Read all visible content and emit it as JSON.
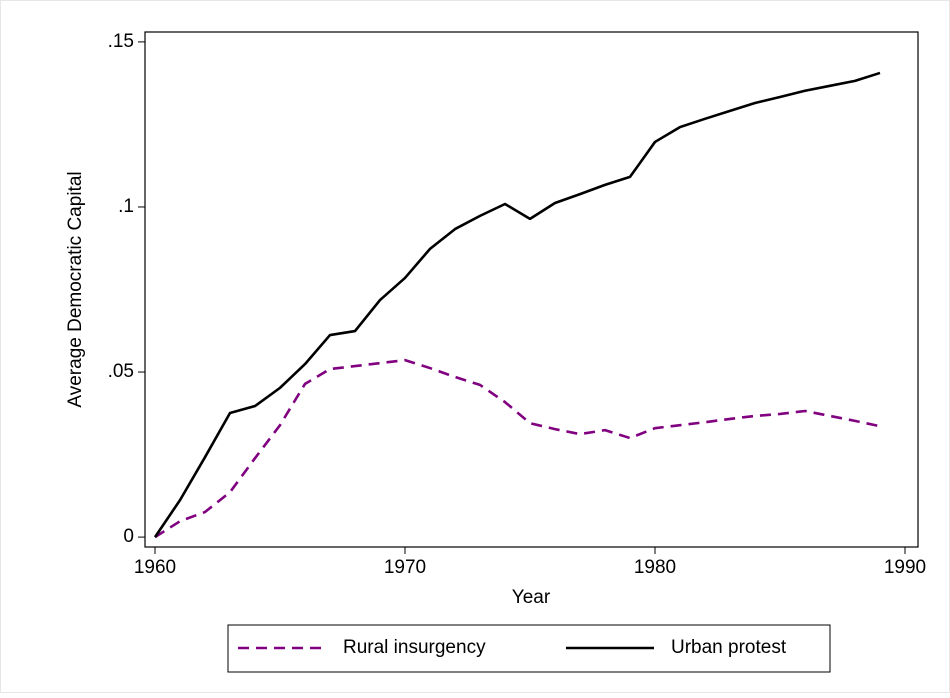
{
  "chart_data": {
    "type": "line",
    "x_label": "Year",
    "y_label": "Average Democratic Capital",
    "x": [
      1960,
      1961,
      1962,
      1963,
      1964,
      1965,
      1966,
      1967,
      1968,
      1969,
      1970,
      1971,
      1972,
      1973,
      1974,
      1975,
      1976,
      1977,
      1978,
      1979,
      1980,
      1981,
      1982,
      1983,
      1984,
      1985,
      1986,
      1987,
      1988,
      1989
    ],
    "series": [
      {
        "name": "Rural insurgency",
        "color": "#800080",
        "dash": "dashed",
        "values": [
          0,
          0.0048,
          0.0076,
          0.0136,
          0.0239,
          0.0339,
          0.0464,
          0.0509,
          0.0518,
          0.0527,
          0.0536,
          0.0512,
          0.0485,
          0.0461,
          0.0409,
          0.0345,
          0.0327,
          0.0312,
          0.0324,
          0.03,
          0.033,
          0.0339,
          0.0348,
          0.0358,
          0.0367,
          0.0373,
          0.0382,
          0.0367,
          0.0352,
          0.0336
        ]
      },
      {
        "name": "Urban protest",
        "color": "#000000",
        "dash": "solid",
        "values": [
          0,
          0.0112,
          0.0242,
          0.0376,
          0.0397,
          0.0452,
          0.0524,
          0.0612,
          0.0624,
          0.0718,
          0.0785,
          0.0873,
          0.0933,
          0.0973,
          0.1009,
          0.0964,
          0.1012,
          0.1039,
          0.1067,
          0.1091,
          0.1197,
          0.1242,
          0.1267,
          0.1291,
          0.1315,
          0.1333,
          0.1352,
          0.1367,
          0.1382,
          0.1406
        ]
      }
    ],
    "xlim": [
      1959.6,
      1990.52
    ],
    "ylim": [
      -0.003,
      0.153
    ],
    "xticks": [
      1960,
      1970,
      1980,
      1990
    ],
    "yticks": [
      0,
      {
        "value": 0.05,
        "label": ".05"
      },
      {
        "value": 0.1,
        "label": ".1"
      },
      {
        "value": 0.15,
        "label": ".15"
      }
    ],
    "grid": false,
    "legend": "bottom"
  }
}
